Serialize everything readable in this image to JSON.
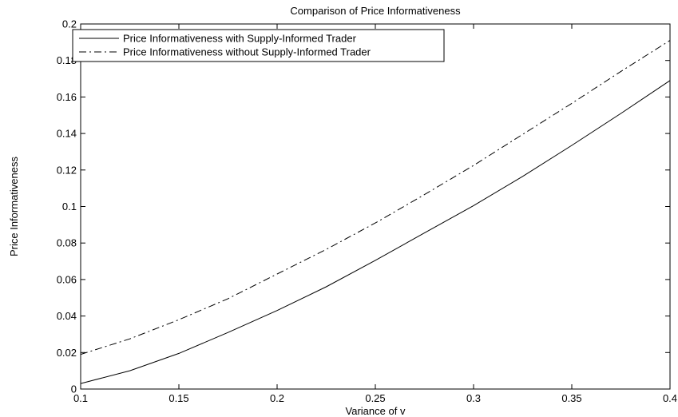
{
  "chart_data": {
    "type": "line",
    "title": "Comparison of Price Informativeness",
    "xlabel": "Variance of v",
    "ylabel": "Price Informativeness",
    "xlim": [
      0.1,
      0.4
    ],
    "ylim": [
      0,
      0.2
    ],
    "xticks": [
      0.1,
      0.15,
      0.2,
      0.25,
      0.3,
      0.35,
      0.4
    ],
    "xtick_labels": [
      "0.1",
      "0.15",
      "0.2",
      "0.25",
      "0.3",
      "0.35",
      "0.4"
    ],
    "yticks": [
      0,
      0.02,
      0.04,
      0.06,
      0.08,
      0.1,
      0.12,
      0.14,
      0.16,
      0.18,
      0.2
    ],
    "ytick_labels": [
      "0",
      "0.02",
      "0.04",
      "0.06",
      "0.08",
      "0.1",
      "0.12",
      "0.14",
      "0.16",
      "0.18",
      "0.2"
    ],
    "grid": false,
    "legend_position": "top-left",
    "series": [
      {
        "name": "Price Informativeness with Supply-Informed Trader",
        "line_style": "solid",
        "color": "#000000",
        "x": [
          0.1,
          0.125,
          0.15,
          0.175,
          0.2,
          0.225,
          0.25,
          0.275,
          0.3,
          0.325,
          0.35,
          0.375,
          0.4
        ],
        "y": [
          0.003,
          0.01,
          0.0195,
          0.031,
          0.043,
          0.056,
          0.0705,
          0.0855,
          0.1005,
          0.1165,
          0.1335,
          0.151,
          0.169
        ]
      },
      {
        "name": "Price Informativeness without Supply-Informed Trader",
        "line_style": "dashdot",
        "color": "#000000",
        "x": [
          0.1,
          0.125,
          0.15,
          0.175,
          0.2,
          0.225,
          0.25,
          0.275,
          0.3,
          0.325,
          0.35,
          0.375,
          0.4
        ],
        "y": [
          0.019,
          0.0275,
          0.038,
          0.0495,
          0.063,
          0.0765,
          0.091,
          0.1065,
          0.1225,
          0.1395,
          0.1565,
          0.174,
          0.191
        ]
      }
    ]
  }
}
